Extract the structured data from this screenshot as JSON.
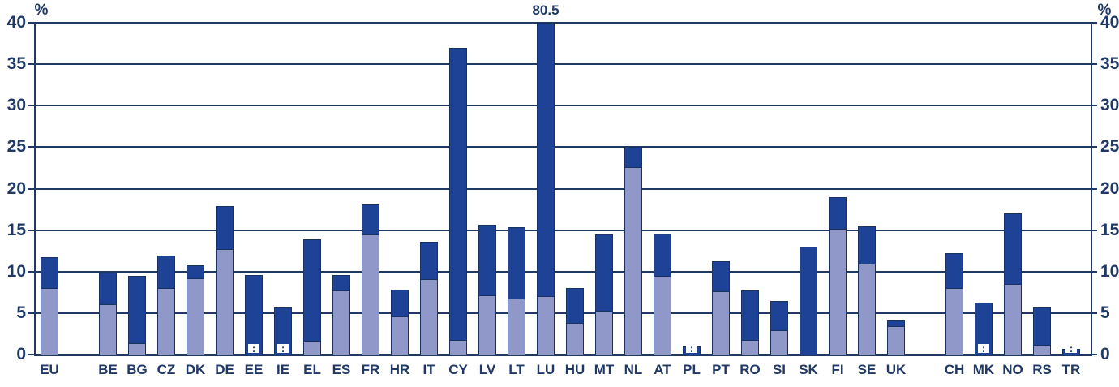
{
  "chart_data": {
    "type": "bar",
    "variant": "stacked-vertical",
    "title": "",
    "xlabel": "",
    "ylabel_left": "%",
    "ylabel_right": "%",
    "ylim": [
      0,
      40
    ],
    "yticks": [
      0,
      5,
      10,
      15,
      20,
      25,
      30,
      35,
      40
    ],
    "grid": "horizontal",
    "legend": "none",
    "categories": [
      "EU",
      "BE",
      "BG",
      "CZ",
      "DK",
      "DE",
      "EE",
      "IE",
      "EL",
      "ES",
      "FR",
      "HR",
      "IT",
      "CY",
      "LV",
      "LT",
      "LU",
      "HU",
      "MT",
      "NL",
      "AT",
      "PL",
      "PT",
      "RO",
      "SI",
      "SK",
      "FI",
      "SE",
      "UK",
      "CH",
      "MK",
      "NO",
      "RS",
      "TR"
    ],
    "group_separators_after": [
      "EU",
      "UK"
    ],
    "series": [
      {
        "name": "series_1_lower",
        "color": "#9098C9",
        "values": [
          8.0,
          6.1,
          1.4,
          8.0,
          9.2,
          12.7,
          null,
          null,
          1.7,
          7.7,
          14.5,
          4.6,
          9.1,
          1.8,
          7.1,
          6.7,
          7.0,
          3.8,
          5.3,
          22.6,
          9.5,
          null,
          7.6,
          1.8,
          2.9,
          0,
          15.2,
          11.0,
          3.4,
          8.0,
          null,
          8.5,
          1.2,
          null
        ]
      },
      {
        "name": "series_2_upper",
        "color": "#1E4296",
        "values": [
          3.7,
          3.8,
          8.1,
          3.9,
          1.6,
          5.2,
          9.6,
          5.7,
          12.2,
          1.9,
          3.6,
          3.2,
          4.5,
          35.2,
          8.5,
          8.7,
          73.5,
          4.2,
          9.2,
          2.4,
          5.1,
          1.0,
          3.6,
          5.9,
          3.6,
          13.0,
          3.8,
          4.5,
          0.7,
          4.2,
          6.3,
          8.5,
          4.5,
          0.7
        ]
      }
    ],
    "totals": [
      11.7,
      9.9,
      9.5,
      11.9,
      10.8,
      17.9,
      9.6,
      5.7,
      13.9,
      9.6,
      18.1,
      7.8,
      13.6,
      37.0,
      15.6,
      15.4,
      80.5,
      8.0,
      14.5,
      25.0,
      14.6,
      1.0,
      11.2,
      7.7,
      6.5,
      13.0,
      19.0,
      15.5,
      4.1,
      12.2,
      6.3,
      17.0,
      5.7,
      0.7
    ],
    "missing_data": {
      "symbol": ":",
      "categories": [
        "EE",
        "IE",
        "PL",
        "MK",
        "TR"
      ]
    },
    "annotations": [
      {
        "text": "80.5",
        "category": "LU",
        "position": "above-clipped-bar"
      }
    ],
    "colors": {
      "grid": "#1F3864",
      "text": "#1F3864",
      "bar_border": "#17325F",
      "background": "#ffffff"
    }
  }
}
